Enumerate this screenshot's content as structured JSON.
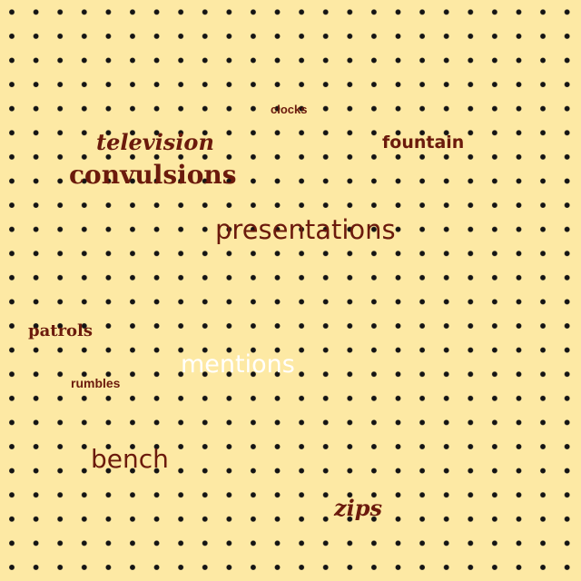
{
  "words": [
    {
      "text": "clocks"
    },
    {
      "text": "television"
    },
    {
      "text": "fountain"
    },
    {
      "text": "convulsions"
    },
    {
      "text": "presentations"
    },
    {
      "text": "patrols"
    },
    {
      "text": "mentions"
    },
    {
      "text": "rumbles"
    },
    {
      "text": "bench"
    },
    {
      "text": "zips"
    }
  ],
  "colors": {
    "background": "#fde9a4",
    "dots": "#141414",
    "text_primary": "#6b1a0c",
    "text_highlight": "#ffffff"
  }
}
